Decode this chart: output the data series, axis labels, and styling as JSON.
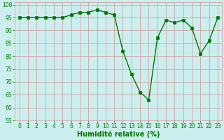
{
  "x": [
    0,
    1,
    2,
    3,
    4,
    5,
    6,
    7,
    8,
    9,
    10,
    11,
    12,
    13,
    14,
    15,
    16,
    17,
    18,
    19,
    20,
    21,
    22,
    23
  ],
  "y": [
    95,
    95,
    95,
    95,
    95,
    95,
    96,
    97,
    97,
    98,
    97,
    96,
    82,
    73,
    66,
    63,
    87,
    94,
    93,
    94,
    91,
    81,
    86,
    95
  ],
  "line_color": "#007700",
  "marker_color": "#007700",
  "bg_color": "#cceeee",
  "grid_color": "#cc9999",
  "xlabel": "Humidité relative (%)",
  "ylim": [
    55,
    101
  ],
  "xlim": [
    -0.5,
    23.5
  ],
  "yticks": [
    55,
    60,
    65,
    70,
    75,
    80,
    85,
    90,
    95,
    100
  ],
  "xticks": [
    0,
    1,
    2,
    3,
    4,
    5,
    6,
    7,
    8,
    9,
    10,
    11,
    12,
    13,
    14,
    15,
    16,
    17,
    18,
    19,
    20,
    21,
    22,
    23
  ],
  "tick_color": "#007700",
  "xlabel_color": "#007700",
  "xlabel_fontsize": 7,
  "tick_fontsize": 5.5,
  "lw": 1.0,
  "markersize": 3.5
}
